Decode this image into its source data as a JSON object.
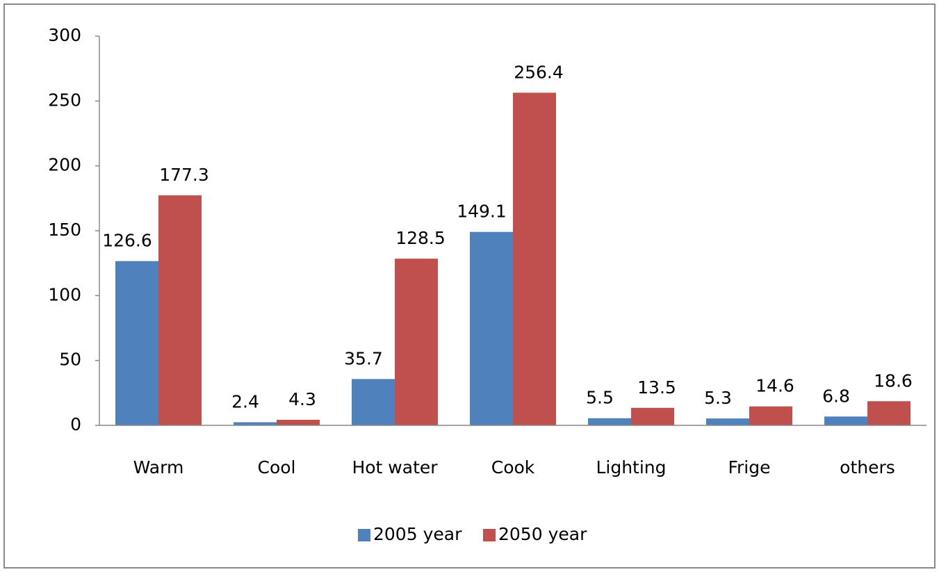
{
  "chart_data": {
    "type": "bar",
    "categories": [
      "Warm",
      "Cool",
      "Hot water",
      "Cook",
      "Lighting",
      "Frige",
      "others"
    ],
    "series": [
      {
        "name": "2005 year",
        "color": "#4f81bd",
        "values": [
          126.6,
          2.4,
          35.7,
          149.1,
          5.5,
          5.3,
          6.8
        ]
      },
      {
        "name": "2050 year",
        "color": "#c0504d",
        "values": [
          177.3,
          4.3,
          128.5,
          256.4,
          13.5,
          14.6,
          18.6
        ]
      }
    ],
    "ylim": [
      0,
      300
    ],
    "yticks": [
      0,
      50,
      100,
      150,
      200,
      250,
      300
    ],
    "grid": false,
    "legend": "bottom"
  }
}
